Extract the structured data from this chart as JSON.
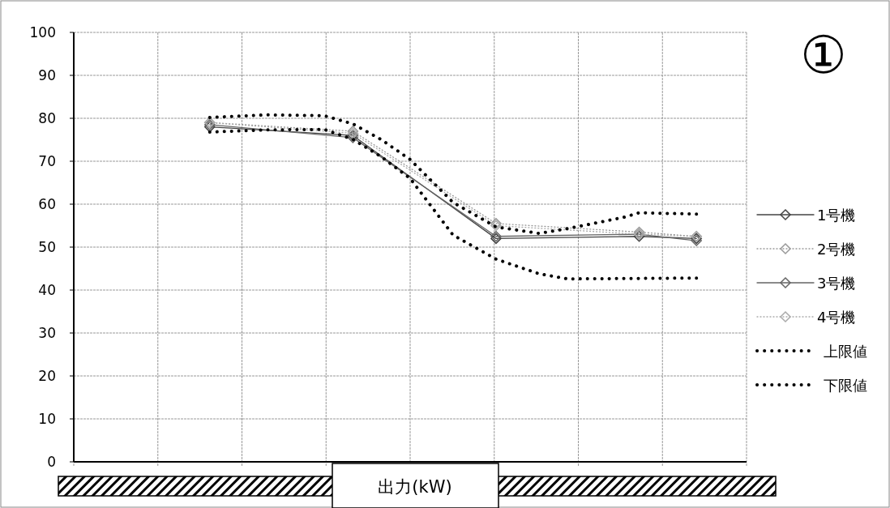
{
  "chart_data": {
    "type": "line",
    "xlabel": "出力(kW)",
    "annotations": [
      "①"
    ],
    "categories": [
      null,
      null,
      null,
      null,
      null,
      null,
      null,
      null,
      null,
      null,
      null,
      null,
      null,
      null,
      null,
      null,
      null,
      null,
      null,
      null,
      null,
      null,
      null,
      null,
      null,
      null,
      null,
      null,
      null,
      null,
      null,
      null,
      null,
      null,
      null,
      null,
      null,
      null,
      null,
      null,
      null,
      null,
      null,
      null,
      null,
      null,
      null
    ],
    "ylim": [
      0,
      100
    ],
    "yticks": [
      0,
      10,
      20,
      30,
      40,
      50,
      60,
      70,
      80,
      90,
      100
    ],
    "tick_labels": "y",
    "grid": true,
    "legend": "right",
    "series": [
      {
        "name": "1号機",
        "color": "#444444",
        "line_style": "solid",
        "marker": "diamond",
        "values": [
          null,
          null,
          null,
          null,
          null,
          null,
          null,
          null,
          null,
          78,
          null,
          null,
          null,
          null,
          null,
          null,
          null,
          null,
          null,
          76,
          null,
          null,
          null,
          null,
          null,
          null,
          null,
          null,
          null,
          52,
          null,
          null,
          null,
          null,
          null,
          null,
          null,
          null,
          null,
          52.5,
          null,
          null,
          null,
          52,
          null,
          null,
          null
        ]
      },
      {
        "name": "2号機",
        "color": "#999999",
        "line_style": "dotted",
        "marker": "diamond",
        "values": [
          null,
          null,
          null,
          null,
          null,
          null,
          null,
          null,
          null,
          79,
          null,
          null,
          null,
          null,
          null,
          null,
          null,
          null,
          null,
          77,
          null,
          null,
          null,
          null,
          null,
          null,
          null,
          null,
          null,
          55.5,
          null,
          null,
          null,
          null,
          null,
          null,
          null,
          null,
          null,
          53.5,
          null,
          null,
          null,
          52.5,
          null,
          null,
          null
        ]
      },
      {
        "name": "3号機",
        "color": "#666666",
        "line_style": "solid",
        "marker": "diamond",
        "values": [
          null,
          null,
          null,
          null,
          null,
          null,
          null,
          null,
          null,
          78.5,
          null,
          null,
          null,
          null,
          null,
          null,
          null,
          null,
          null,
          75.5,
          null,
          null,
          null,
          null,
          null,
          null,
          null,
          null,
          null,
          52.5,
          null,
          null,
          null,
          null,
          null,
          null,
          null,
          null,
          null,
          53,
          null,
          null,
          null,
          51.5,
          null,
          null,
          null
        ]
      },
      {
        "name": "4号機",
        "color": "#aaaaaa",
        "line_style": "dotted",
        "marker": "diamond",
        "values": [
          null,
          null,
          null,
          null,
          null,
          null,
          null,
          null,
          null,
          79,
          null,
          null,
          null,
          null,
          null,
          null,
          null,
          null,
          null,
          76.5,
          null,
          null,
          null,
          null,
          null,
          null,
          null,
          null,
          null,
          55,
          null,
          null,
          null,
          null,
          null,
          null,
          null,
          null,
          null,
          53,
          null,
          null,
          null,
          52.5,
          null,
          null,
          null
        ]
      },
      {
        "name": "上限値",
        "color": "#000000",
        "line_style": "dotted",
        "marker": "none",
        "values": [
          null,
          null,
          null,
          null,
          null,
          null,
          null,
          null,
          null,
          80.2,
          null,
          null,
          null,
          80.8,
          null,
          null,
          null,
          80.6,
          null,
          78.7,
          null,
          75,
          null,
          70.4,
          null,
          null,
          60.4,
          null,
          null,
          54.7,
          null,
          null,
          53.2,
          null,
          54.3,
          null,
          null,
          null,
          57,
          58,
          null,
          null,
          null,
          57.7,
          null,
          null,
          null
        ]
      },
      {
        "name": "下限値",
        "color": "#000000",
        "line_style": "dotted",
        "marker": "none",
        "values": [
          null,
          null,
          null,
          null,
          null,
          null,
          null,
          null,
          null,
          76.8,
          null,
          null,
          null,
          77.3,
          null,
          null,
          null,
          77.4,
          null,
          75.1,
          null,
          71,
          null,
          66,
          null,
          null,
          52.8,
          null,
          null,
          47.2,
          null,
          null,
          43.8,
          null,
          42.6,
          null,
          null,
          null,
          null,
          null,
          null,
          null,
          null,
          42.8,
          null,
          null,
          null
        ]
      }
    ]
  }
}
